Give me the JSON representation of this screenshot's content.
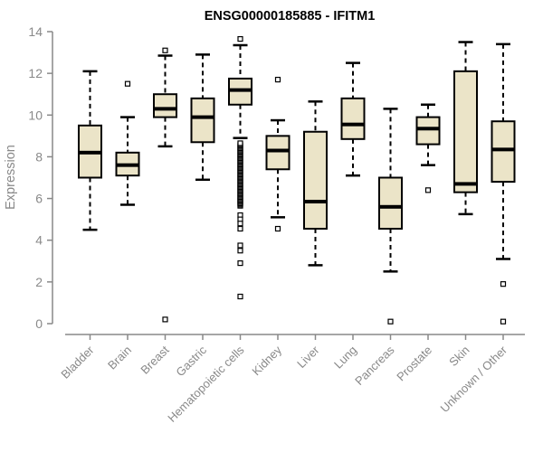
{
  "colors": {
    "box_fill": "#EBE4C8",
    "line": "#000000",
    "axis": "#898989",
    "title": "#000000",
    "background": "#FFFFFF"
  },
  "chart_data": {
    "type": "boxplot",
    "title": "ENSG00000185885 - IFITM1",
    "ylabel": "Expression",
    "xlabel": "",
    "ylim": [
      0,
      14
    ],
    "yticks": [
      0,
      2,
      4,
      6,
      8,
      10,
      12,
      14
    ],
    "grid": false,
    "legend": "none",
    "categories": [
      "Bladder",
      "Brain",
      "Breast",
      "Gastric",
      "Hematopoietic cells",
      "Kidney",
      "Liver",
      "Lung",
      "Pancreas",
      "Prostate",
      "Skin",
      "Unknown / Other"
    ],
    "series": [
      {
        "name": "Bladder",
        "whisker_low": 4.5,
        "q1": 7.0,
        "median": 8.2,
        "q3": 9.5,
        "whisker_high": 12.1,
        "outliers": []
      },
      {
        "name": "Brain",
        "whisker_low": 5.7,
        "q1": 7.1,
        "median": 7.6,
        "q3": 8.2,
        "whisker_high": 9.9,
        "outliers": [
          11.5
        ]
      },
      {
        "name": "Breast",
        "whisker_low": 8.5,
        "q1": 9.9,
        "median": 10.3,
        "q3": 11.0,
        "whisker_high": 12.85,
        "outliers": [
          13.1,
          0.2
        ]
      },
      {
        "name": "Gastric",
        "whisker_low": 6.9,
        "q1": 8.7,
        "median": 9.9,
        "q3": 10.8,
        "whisker_high": 12.9,
        "outliers": []
      },
      {
        "name": "Hematopoietic cells",
        "whisker_low": 8.9,
        "q1": 10.5,
        "median": 11.2,
        "q3": 11.75,
        "whisker_high": 13.35,
        "outliers": [
          13.65,
          5.2,
          5.0,
          4.8,
          4.55,
          3.75,
          3.5,
          2.9,
          1.3
        ],
        "outlier_band": [
          5.65,
          8.65
        ]
      },
      {
        "name": "Kidney",
        "whisker_low": 5.1,
        "q1": 7.4,
        "median": 8.3,
        "q3": 9.0,
        "whisker_high": 9.75,
        "outliers": [
          11.7,
          4.55
        ]
      },
      {
        "name": "Liver",
        "whisker_low": 2.8,
        "q1": 4.55,
        "median": 5.85,
        "q3": 9.2,
        "whisker_high": 10.65,
        "outliers": []
      },
      {
        "name": "Lung",
        "whisker_low": 7.1,
        "q1": 8.85,
        "median": 9.55,
        "q3": 10.8,
        "whisker_high": 12.5,
        "outliers": []
      },
      {
        "name": "Pancreas",
        "whisker_low": 2.5,
        "q1": 4.55,
        "median": 5.6,
        "q3": 7.0,
        "whisker_high": 10.3,
        "outliers": [
          0.1
        ]
      },
      {
        "name": "Prostate",
        "whisker_low": 7.6,
        "q1": 8.6,
        "median": 9.35,
        "q3": 9.9,
        "whisker_high": 10.5,
        "outliers": [
          6.4
        ]
      },
      {
        "name": "Skin",
        "whisker_low": 5.25,
        "q1": 6.3,
        "median": 6.7,
        "q3": 12.1,
        "whisker_high": 13.5,
        "outliers": []
      },
      {
        "name": "Unknown / Other",
        "whisker_low": 3.1,
        "q1": 6.8,
        "median": 8.35,
        "q3": 9.7,
        "whisker_high": 13.4,
        "outliers": [
          1.9,
          0.1
        ]
      }
    ]
  }
}
